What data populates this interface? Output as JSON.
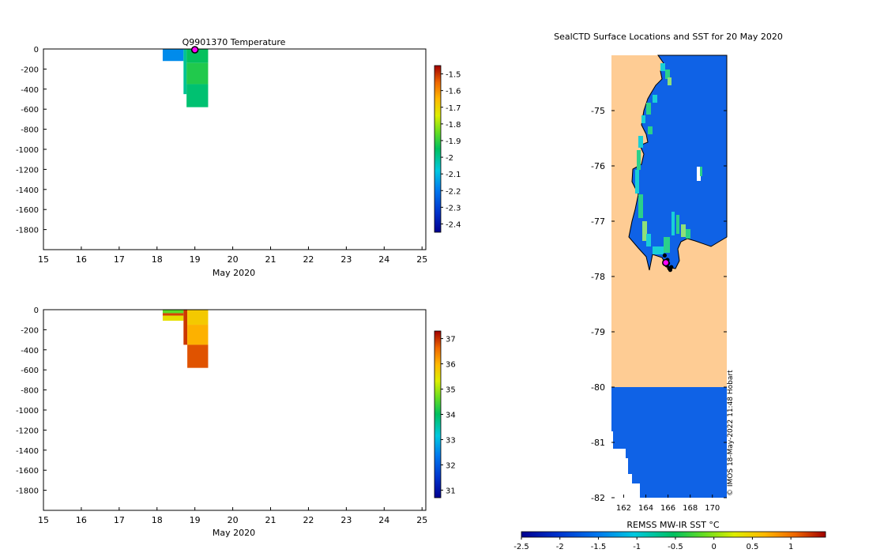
{
  "chart_data": [
    {
      "type": "heatmap",
      "title": "Q9901370  Temperature",
      "xlabel": "May 2020",
      "ylabel": "",
      "x_ticks": [
        "15",
        "16",
        "17",
        "18",
        "19",
        "20",
        "21",
        "22",
        "23",
        "24",
        "25"
      ],
      "y_ticks": [
        "0",
        "-200",
        "-400",
        "-600",
        "-800",
        "-1000",
        "-1200",
        "-1400",
        "-1600",
        "-1800"
      ],
      "xlim": [
        15,
        25.1
      ],
      "ylim": [
        -2000,
        0
      ],
      "colorbar": {
        "min": -2.45,
        "max": -1.45,
        "ticks": [
          "-1.5",
          "-1.6",
          "-1.7",
          "-1.8",
          "-1.9",
          "-2",
          "-2.1",
          "-2.2",
          "-2.3",
          "-2.4"
        ]
      },
      "profiles": [
        {
          "t0": 18.15,
          "t1": 18.7,
          "d0": 0,
          "d1": -120,
          "value": -2.2
        },
        {
          "t0": 18.7,
          "t1": 18.78,
          "d0": 0,
          "d1": -450,
          "value": -2.05
        },
        {
          "t0": 18.78,
          "t1": 19.35,
          "d0": 0,
          "d1": -140,
          "value": -2.0
        },
        {
          "t0": 18.78,
          "t1": 19.35,
          "d0": -140,
          "d1": -350,
          "value": -1.97
        },
        {
          "t0": 18.78,
          "t1": 19.35,
          "d0": -350,
          "d1": -580,
          "value": -2.02
        }
      ],
      "marker": {
        "x": 19.0,
        "y": 0
      }
    },
    {
      "type": "heatmap",
      "title": "",
      "xlabel": "May 2020",
      "ylabel": "",
      "x_ticks": [
        "15",
        "16",
        "17",
        "18",
        "19",
        "20",
        "21",
        "22",
        "23",
        "24",
        "25"
      ],
      "y_ticks": [
        "0",
        "-200",
        "-400",
        "-600",
        "-800",
        "-1000",
        "-1200",
        "-1400",
        "-1600",
        "-1800"
      ],
      "xlim": [
        15,
        25.1
      ],
      "ylim": [
        -2000,
        0
      ],
      "colorbar": {
        "min": 30.7,
        "max": 37.3,
        "ticks": [
          "37",
          "36",
          "35",
          "34",
          "33",
          "32",
          "31"
        ]
      },
      "profiles": [
        {
          "t0": 18.15,
          "t1": 18.7,
          "d0": 0,
          "d1": -35,
          "value": 34.3
        },
        {
          "t0": 18.15,
          "t1": 18.7,
          "d0": -35,
          "d1": -60,
          "value": 36.8
        },
        {
          "t0": 18.15,
          "t1": 18.7,
          "d0": -60,
          "d1": -110,
          "value": 35.3
        },
        {
          "t0": 18.7,
          "t1": 18.8,
          "d0": 0,
          "d1": -350,
          "value": 36.9
        },
        {
          "t0": 18.8,
          "t1": 19.35,
          "d0": 0,
          "d1": -150,
          "value": 35.6
        },
        {
          "t0": 18.8,
          "t1": 19.35,
          "d0": -150,
          "d1": -350,
          "value": 35.9
        },
        {
          "t0": 18.8,
          "t1": 19.35,
          "d0": -350,
          "d1": -580,
          "value": 36.7
        }
      ]
    },
    {
      "type": "heatmap",
      "title": "SealCTD Surface Locations and SST for 20 May 2020",
      "xlabel": "",
      "ylabel": "",
      "x_ticks": [
        "162",
        "164",
        "166",
        "168",
        "170"
      ],
      "y_ticks": [
        "-75",
        "-76",
        "-77",
        "-78",
        "-79",
        "-80",
        "-81",
        "-82"
      ],
      "xlim": [
        160.9,
        171.3
      ],
      "ylim": [
        -82,
        -74.0
      ],
      "colorbar": {
        "label": "REMSS MW-IR SST °C",
        "min": -2.5,
        "max": 1.45,
        "ticks": [
          "-2.5",
          "-2",
          "-1.5",
          "-1",
          "-0.5",
          "0",
          "0.5",
          "1"
        ]
      },
      "sst_open_water": -1.8,
      "sst_coastal": -1.1,
      "watermark": "© IMOS 18-May-2022 11:48 Hobart",
      "seal_positions": [
        [
          165.8,
          -77.72
        ],
        [
          165.9,
          -77.8
        ],
        [
          166.1,
          -77.85
        ],
        [
          166.3,
          -77.83
        ],
        [
          165.7,
          -77.62
        ],
        [
          166.0,
          -77.76
        ],
        [
          166.2,
          -77.88
        ],
        [
          165.95,
          -77.7
        ]
      ],
      "latest_position": [
        165.8,
        -77.75
      ]
    }
  ]
}
